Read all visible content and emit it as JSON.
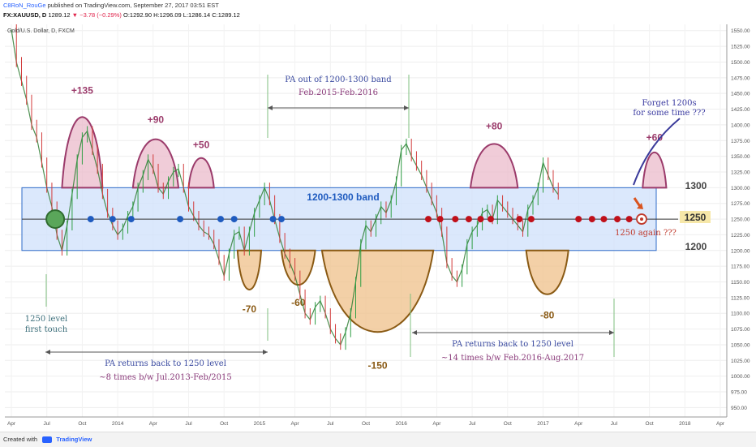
{
  "header": {
    "author": "C8RoN_RouGe",
    "published": "published on TradingView.com, September 27, 2017 03:51 EST",
    "symbol": "FX:XAUUSD, D",
    "last": "1289.12",
    "change": "−3.78 (−0.29%)",
    "ohlc": "O:1292.90 H:1296.09 L:1286.14 C:1289.12"
  },
  "footer": {
    "created": "Created with",
    "brand": "TradingView"
  },
  "chart_data": {
    "type": "line",
    "instrument": "Gold/U.S. Dollar, D, FXCM",
    "x_ticks": [
      "Apr",
      "Jul",
      "Oct",
      "2014",
      "Apr",
      "Jul",
      "Oct",
      "2015",
      "Apr",
      "Jul",
      "Oct",
      "2016",
      "Apr",
      "Jul",
      "Oct",
      "2017",
      "Apr",
      "Jul",
      "Oct",
      "2018",
      "Apr"
    ],
    "y_ticks": [
      950,
      975,
      1000,
      1025,
      1050,
      1075,
      1100,
      1125,
      1150,
      1175,
      1200,
      1225,
      1250,
      1275,
      1300,
      1325,
      1350,
      1375,
      1400,
      1425,
      1450,
      1475,
      1500,
      1525,
      1550
    ],
    "ylim": [
      935,
      1560
    ],
    "current_price": "1250",
    "band": {
      "low": 1200,
      "high": 1300,
      "label": "1200-1300 band"
    },
    "band_axis_labels": {
      "high": "1300",
      "low": "1200"
    },
    "series": [
      {
        "values": [
          [
            0,
            1552
          ],
          [
            3,
            1500
          ],
          [
            6,
            1470
          ],
          [
            9,
            1440
          ],
          [
            12,
            1400
          ],
          [
            15,
            1380
          ],
          [
            18,
            1340
          ],
          [
            21,
            1300
          ],
          [
            24,
            1270
          ],
          [
            27,
            1225
          ],
          [
            30,
            1200
          ],
          [
            33,
            1240
          ],
          [
            36,
            1290
          ],
          [
            39,
            1345
          ],
          [
            42,
            1380
          ],
          [
            45,
            1390
          ],
          [
            48,
            1360
          ],
          [
            51,
            1330
          ],
          [
            54,
            1290
          ],
          [
            57,
            1260
          ],
          [
            60,
            1240
          ],
          [
            63,
            1225
          ],
          [
            66,
            1235
          ],
          [
            69,
            1255
          ],
          [
            72,
            1270
          ],
          [
            75,
            1300
          ],
          [
            78,
            1320
          ],
          [
            81,
            1345
          ],
          [
            84,
            1330
          ],
          [
            87,
            1300
          ],
          [
            90,
            1290
          ],
          [
            93,
            1310
          ],
          [
            96,
            1325
          ],
          [
            99,
            1330
          ],
          [
            102,
            1300
          ],
          [
            105,
            1270
          ],
          [
            108,
            1255
          ],
          [
            111,
            1240
          ],
          [
            114,
            1230
          ],
          [
            117,
            1225
          ],
          [
            120,
            1210
          ],
          [
            123,
            1185
          ],
          [
            126,
            1160
          ],
          [
            129,
            1195
          ],
          [
            132,
            1225
          ],
          [
            135,
            1230
          ],
          [
            138,
            1200
          ],
          [
            141,
            1230
          ],
          [
            144,
            1260
          ],
          [
            147,
            1280
          ],
          [
            150,
            1300
          ],
          [
            153,
            1280
          ],
          [
            156,
            1250
          ],
          [
            159,
            1220
          ],
          [
            162,
            1195
          ],
          [
            165,
            1180
          ],
          [
            168,
            1160
          ],
          [
            171,
            1130
          ],
          [
            174,
            1100
          ],
          [
            177,
            1090
          ],
          [
            180,
            1110
          ],
          [
            183,
            1120
          ],
          [
            186,
            1100
          ],
          [
            189,
            1075
          ],
          [
            192,
            1060
          ],
          [
            195,
            1050
          ],
          [
            198,
            1070
          ],
          [
            201,
            1100
          ],
          [
            204,
            1150
          ],
          [
            207,
            1210
          ],
          [
            210,
            1240
          ],
          [
            213,
            1230
          ],
          [
            216,
            1250
          ],
          [
            219,
            1270
          ],
          [
            222,
            1260
          ],
          [
            225,
            1280
          ],
          [
            228,
            1310
          ],
          [
            231,
            1360
          ],
          [
            234,
            1370
          ],
          [
            237,
            1350
          ],
          [
            240,
            1335
          ],
          [
            243,
            1320
          ],
          [
            246,
            1300
          ],
          [
            249,
            1280
          ],
          [
            252,
            1260
          ],
          [
            255,
            1230
          ],
          [
            258,
            1180
          ],
          [
            261,
            1160
          ],
          [
            264,
            1150
          ],
          [
            267,
            1170
          ],
          [
            270,
            1210
          ],
          [
            273,
            1230
          ],
          [
            276,
            1240
          ],
          [
            279,
            1260
          ],
          [
            282,
            1265
          ],
          [
            285,
            1250
          ],
          [
            288,
            1280
          ],
          [
            291,
            1270
          ],
          [
            294,
            1260
          ],
          [
            297,
            1250
          ],
          [
            300,
            1240
          ],
          [
            303,
            1230
          ],
          [
            306,
            1265
          ],
          [
            309,
            1280
          ],
          [
            312,
            1300
          ],
          [
            315,
            1340
          ],
          [
            318,
            1320
          ],
          [
            321,
            1300
          ],
          [
            324,
            1289
          ]
        ]
      }
    ],
    "x_range": [
      0,
      420
    ],
    "annotations": {
      "peaks": [
        {
          "label": "+135",
          "x": 42,
          "y": 1437
        },
        {
          "label": "+90",
          "x": 87,
          "y": 1390
        },
        {
          "label": "+50",
          "x": 114,
          "y": 1350
        },
        {
          "label": "+80",
          "x": 286,
          "y": 1380
        },
        {
          "label": "+60",
          "x": 383,
          "y": 1362
        }
      ],
      "troughs": [
        {
          "label": "-70",
          "x": 141,
          "y": 1130
        },
        {
          "label": "-60",
          "x": 171,
          "y": 1140
        },
        {
          "label": "-150",
          "x": 229,
          "y": 1040
        },
        {
          "label": "-80",
          "x": 320,
          "y": 1120
        }
      ],
      "first_touch": [
        "1250 level",
        "first touch"
      ],
      "pa_out": [
        "PA out of 1200-1300 band",
        "Feb.2015-Feb.2016"
      ],
      "pa_returns_1": [
        "PA returns back to 1250 level",
        "~8 times b/w Jul.2013-Feb/2015"
      ],
      "pa_returns_2": [
        "PA returns back to 1250 level",
        "~14 times b/w Feb.2016-Aug.2017"
      ],
      "forget": [
        "Forget 1200s",
        "for some time ???"
      ],
      "again": "1250 again ???"
    },
    "touches_blue": [
      26,
      47,
      60,
      71,
      100,
      124,
      132,
      155,
      160
    ],
    "touches_red": [
      247,
      254,
      263,
      271,
      278,
      284,
      301,
      308,
      336,
      344,
      351,
      359,
      366,
      374
    ]
  }
}
